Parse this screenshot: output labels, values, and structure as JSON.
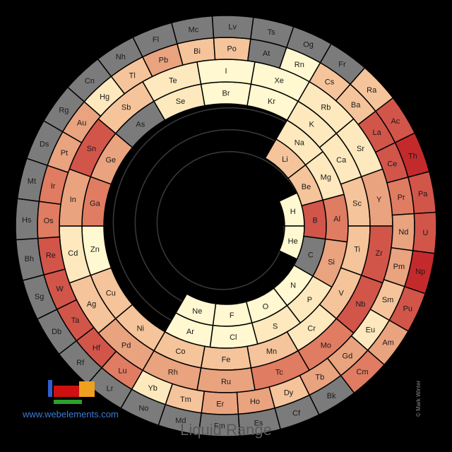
{
  "caption": "Liquid Range",
  "site": "www.webelements.com",
  "copyright": "© Mark Winter",
  "colors": {
    "none": "#7b7b7b",
    "c0": "#fff8d0",
    "c1": "#fde9bd",
    "c2": "#f5c49a",
    "c3": "#e9a37f",
    "c4": "#e07c62",
    "c5": "#d2554a",
    "c6": "#c42a2c"
  },
  "rings": [
    {
      "name": "period-1",
      "elements": [
        [
          "H",
          "c0"
        ],
        [
          "He",
          "c0"
        ]
      ]
    },
    {
      "name": "period-2",
      "elements": [
        [
          "Li",
          "c2"
        ],
        [
          "Be",
          "c2"
        ],
        [
          "B",
          "c5"
        ],
        [
          "C",
          "none"
        ],
        [
          "N",
          "c0"
        ],
        [
          "O",
          "c0"
        ],
        [
          "F",
          "c0"
        ],
        [
          "Ne",
          "c0"
        ]
      ]
    },
    {
      "name": "period-3",
      "elements": [
        [
          "Na",
          "c1"
        ],
        [
          "Mg",
          "c1"
        ],
        [
          "Al",
          "c4"
        ],
        [
          "Si",
          "c3"
        ],
        [
          "P",
          "c1"
        ],
        [
          "S",
          "c1"
        ],
        [
          "Cl",
          "c0"
        ],
        [
          "Ar",
          "c0"
        ]
      ]
    },
    {
      "name": "period-4",
      "elements": [
        [
          "K",
          "c1"
        ],
        [
          "Ca",
          "c1"
        ],
        [
          "Sc",
          "c2"
        ],
        [
          "Ti",
          "c2"
        ],
        [
          "V",
          "c2"
        ],
        [
          "Cr",
          "c1"
        ],
        [
          "Mn",
          "c2"
        ],
        [
          "Fe",
          "c2"
        ],
        [
          "Co",
          "c2"
        ],
        [
          "Ni",
          "c2"
        ],
        [
          "Cu",
          "c2"
        ],
        [
          "Zn",
          "c0"
        ],
        [
          "Ga",
          "c4"
        ],
        [
          "Ge",
          "c3"
        ],
        [
          "As",
          "none"
        ],
        [
          "Se",
          "c1"
        ],
        [
          "Br",
          "c0"
        ],
        [
          "Kr",
          "c0"
        ]
      ]
    },
    {
      "name": "period-5",
      "elements": [
        [
          "Rb",
          "c1"
        ],
        [
          "Sr",
          "c1"
        ],
        [
          "Y",
          "c3"
        ],
        [
          "Zr",
          "c5"
        ],
        [
          "Nb",
          "c5"
        ],
        [
          "Mo",
          "c4"
        ],
        [
          "Tc",
          "c4"
        ],
        [
          "Ru",
          "c3"
        ],
        [
          "Rh",
          "c3"
        ],
        [
          "Pd",
          "c3"
        ],
        [
          "Ag",
          "c2"
        ],
        [
          "Cd",
          "c1"
        ],
        [
          "In",
          "c3"
        ],
        [
          "Sn",
          "c5"
        ],
        [
          "Sb",
          "c2"
        ],
        [
          "Te",
          "c1"
        ],
        [
          "I",
          "c0"
        ],
        [
          "Xe",
          "c0"
        ]
      ]
    },
    {
      "name": "period-6",
      "elements": [
        [
          "Cs",
          "c2"
        ],
        [
          "Ba",
          "c2"
        ],
        [
          "La",
          "c5"
        ],
        [
          "Ce",
          "c5"
        ],
        [
          "Pr",
          "c4"
        ],
        [
          "Nd",
          "c3"
        ],
        [
          "Pm",
          "c3"
        ],
        [
          "Sm",
          "c2"
        ],
        [
          "Eu",
          "c1"
        ],
        [
          "Gd",
          "c3"
        ],
        [
          "Tb",
          "c3"
        ],
        [
          "Dy",
          "c2"
        ],
        [
          "Ho",
          "c3"
        ],
        [
          "Er",
          "c3"
        ],
        [
          "Tm",
          "c2"
        ],
        [
          "Yb",
          "c1"
        ],
        [
          "Lu",
          "c4"
        ],
        [
          "Hf",
          "c5"
        ],
        [
          "Ta",
          "c5"
        ],
        [
          "W",
          "c5"
        ],
        [
          "Re",
          "c5"
        ],
        [
          "Os",
          "c4"
        ],
        [
          "Ir",
          "c4"
        ],
        [
          "Pt",
          "c3"
        ],
        [
          "Au",
          "c3"
        ],
        [
          "Hg",
          "c1"
        ],
        [
          "Tl",
          "c2"
        ],
        [
          "Pb",
          "c3"
        ],
        [
          "Bi",
          "c2"
        ],
        [
          "Po",
          "c2"
        ],
        [
          "At",
          "none"
        ],
        [
          "Rn",
          "c0"
        ]
      ]
    },
    {
      "name": "period-7",
      "elements": [
        [
          "Fr",
          "none"
        ],
        [
          "Ra",
          "c2"
        ],
        [
          "Ac",
          "c5"
        ],
        [
          "Th",
          "c6"
        ],
        [
          "Pa",
          "c5"
        ],
        [
          "U",
          "c5"
        ],
        [
          "Np",
          "c6"
        ],
        [
          "Pu",
          "c5"
        ],
        [
          "Am",
          "c3"
        ],
        [
          "Cm",
          "c4"
        ],
        [
          "Bk",
          "none"
        ],
        [
          "Cf",
          "none"
        ],
        [
          "Es",
          "none"
        ],
        [
          "Fm",
          "none"
        ],
        [
          "Md",
          "none"
        ],
        [
          "No",
          "none"
        ],
        [
          "Lr",
          "none"
        ],
        [
          "Rf",
          "none"
        ],
        [
          "Db",
          "none"
        ],
        [
          "Sg",
          "none"
        ],
        [
          "Bh",
          "none"
        ],
        [
          "Hs",
          "none"
        ],
        [
          "Mt",
          "none"
        ],
        [
          "Ds",
          "none"
        ],
        [
          "Rg",
          "none"
        ],
        [
          "Cn",
          "none"
        ],
        [
          "Nh",
          "none"
        ],
        [
          "Fl",
          "none"
        ],
        [
          "Mc",
          "none"
        ],
        [
          "Lv",
          "none"
        ],
        [
          "Ts",
          "none"
        ],
        [
          "Og",
          "none"
        ]
      ]
    }
  ],
  "mini_table": {
    "block_s": "#2f5fd0",
    "block_d": "#cf1010",
    "block_p": "#f0a020",
    "block_f": "#2aa02a"
  }
}
